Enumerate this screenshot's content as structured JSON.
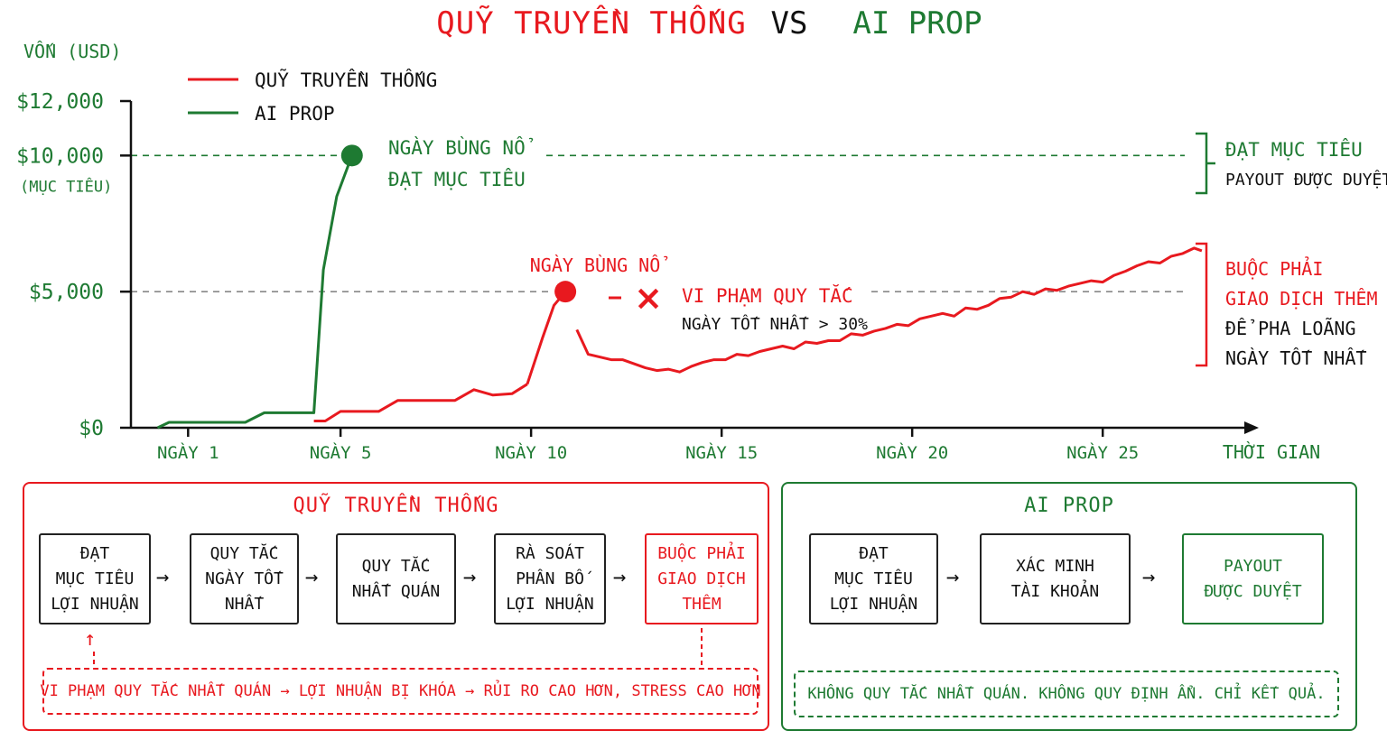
{
  "colors": {
    "traditional": "#e8191f",
    "ai": "#1e7a32",
    "axis": "#111111",
    "guide": "#888888"
  },
  "header": {
    "title_left": "QUỸ TRUYỀN THỐNG",
    "title_vs": "VS",
    "title_right": "AI PROP"
  },
  "chart_data": {
    "type": "line",
    "ylabel": "VỐN (USD)",
    "xlabel": "THỜI GIAN",
    "y_ticks": [
      {
        "value": 0,
        "label": "$0"
      },
      {
        "value": 5000,
        "label": "$5,000"
      },
      {
        "value": 10000,
        "label": "$10,000",
        "sublabel": "(MỤC TIÊU)"
      },
      {
        "value": 12000,
        "label": "$12,000"
      }
    ],
    "x_ticks": [
      {
        "value": 1,
        "label": "NGÀY 1"
      },
      {
        "value": 5,
        "label": "NGÀY 5"
      },
      {
        "value": 10,
        "label": "NGÀY 10"
      },
      {
        "value": 15,
        "label": "NGÀY 15"
      },
      {
        "value": 20,
        "label": "NGÀY 20"
      },
      {
        "value": 25,
        "label": "NGÀY 25"
      }
    ],
    "xlim": [
      -0.5,
      29
    ],
    "ylim": [
      0,
      12000
    ],
    "series": [
      {
        "name": "QUỸ TRUYỀN THỐNG",
        "color": "#e8191f",
        "segments": [
          {
            "x": [
              4.3,
              4.6,
              5.0,
              5.5,
              6.0,
              6.5,
              7.0,
              7.5,
              8.0,
              8.5,
              9.0,
              9.5,
              9.9
            ],
            "y": [
              250,
              250,
              600,
              600,
              600,
              1000,
              1000,
              1000,
              1000,
              1400,
              1200,
              1250,
              1600
            ]
          },
          {
            "x": [
              9.9,
              10.3,
              10.6,
              10.9
            ],
            "y": [
              1600,
              3300,
              4500,
              5000
            ]
          },
          {
            "x": [
              11.2,
              11.5,
              11.8,
              12.1,
              12.4,
              12.7,
              13.0,
              13.3,
              13.6,
              13.9,
              14.2,
              14.5,
              14.8,
              15.1,
              15.4,
              15.7,
              16.0,
              16.3,
              16.6,
              16.9,
              17.2,
              17.5,
              17.8,
              18.1,
              18.4,
              18.7,
              19.0,
              19.3,
              19.6,
              19.9,
              20.2,
              20.5,
              20.8,
              21.1,
              21.4,
              21.7,
              22.0,
              22.3,
              22.6,
              22.9,
              23.2,
              23.5,
              23.8,
              24.1,
              24.4,
              24.7,
              25.0,
              25.3,
              25.6,
              25.9,
              26.2,
              26.5,
              26.8,
              27.1,
              27.4,
              27.6
            ],
            "y": [
              3600,
              2700,
              2600,
              2500,
              2500,
              2350,
              2200,
              2100,
              2150,
              2050,
              2250,
              2400,
              2500,
              2500,
              2700,
              2650,
              2800,
              2900,
              3000,
              2900,
              3150,
              3100,
              3200,
              3200,
              3450,
              3400,
              3550,
              3650,
              3800,
              3750,
              4000,
              4100,
              4200,
              4100,
              4400,
              4350,
              4500,
              4750,
              4800,
              5000,
              4900,
              5100,
              5050,
              5200,
              5300,
              5400,
              5350,
              5600,
              5750,
              5950,
              6100,
              6050,
              6300,
              6400,
              6600,
              6500
            ]
          }
        ],
        "peak": {
          "x": 10.9,
          "y": 5000
        }
      },
      {
        "name": "AI PROP",
        "color": "#1e7a32",
        "x": [
          0.2,
          0.5,
          1.0,
          1.5,
          2.0,
          2.5,
          3.0,
          3.5,
          3.9,
          4.3,
          4.55,
          4.9,
          5.3
        ],
        "y": [
          0,
          200,
          200,
          200,
          200,
          200,
          550,
          550,
          550,
          550,
          5800,
          8500,
          10000
        ],
        "peak": {
          "x": 5.3,
          "y": 10000
        }
      }
    ],
    "annotations": {
      "ai_burst_line1": "NGÀY BÙNG NỔ",
      "ai_burst_line2": "ĐẠT MỤC TIÊU",
      "trad_burst": "NGÀY BÙNG NỔ",
      "violation": "VI PHẠM QUY TẮC",
      "violation_sub": "NGÀY TỐT NHẤT > 30%",
      "violation_mark": "×",
      "right_green": [
        "ĐẠT MỤC TIÊU",
        "PAYOUT ĐƯỢC DUYỆT"
      ],
      "right_red": [
        "BUỘC PHẢI",
        "GIAO DỊCH THÊM",
        "ĐỂ PHA LOÃNG",
        "NGÀY TỐT NHẤT"
      ]
    }
  },
  "traditional_panel": {
    "title": "QUỸ TRUYỀN THỐNG",
    "steps": [
      "ĐẠT\nMỤC TIÊU\nLỢI NHUẬN",
      "QUY TẮC\nNGÀY TỐT\nNHẤT",
      "QUY TẮC\nNHẤT QUÁN",
      "RÀ SOÁT\nPHÂN BỐ\nLỢI NHUẬN",
      "BUỘC PHẢI\nGIAO DỊCH\nTHÊM"
    ],
    "arrow": "→",
    "loop_arrow": "↑",
    "note": "VI PHẠM QUY TẮC NHẤT QUÁN → LỢI NHUẬN BỊ KHÓA → RỦI RO CAO HƠN, STRESS CAO HƠN"
  },
  "ai_panel": {
    "title": "AI PROP",
    "steps": [
      "ĐẠT\nMỤC TIÊU\nLỢI NHUẬN",
      "XÁC MINH\nTÀI KHOẢN",
      "PAYOUT\nĐƯỢC DUYỆT"
    ],
    "arrow": "→",
    "note": "KHÔNG QUY TẮC NHẤT QUÁN. KHÔNG QUY ĐỊNH ẨN. CHỈ KẾT QUẢ."
  }
}
